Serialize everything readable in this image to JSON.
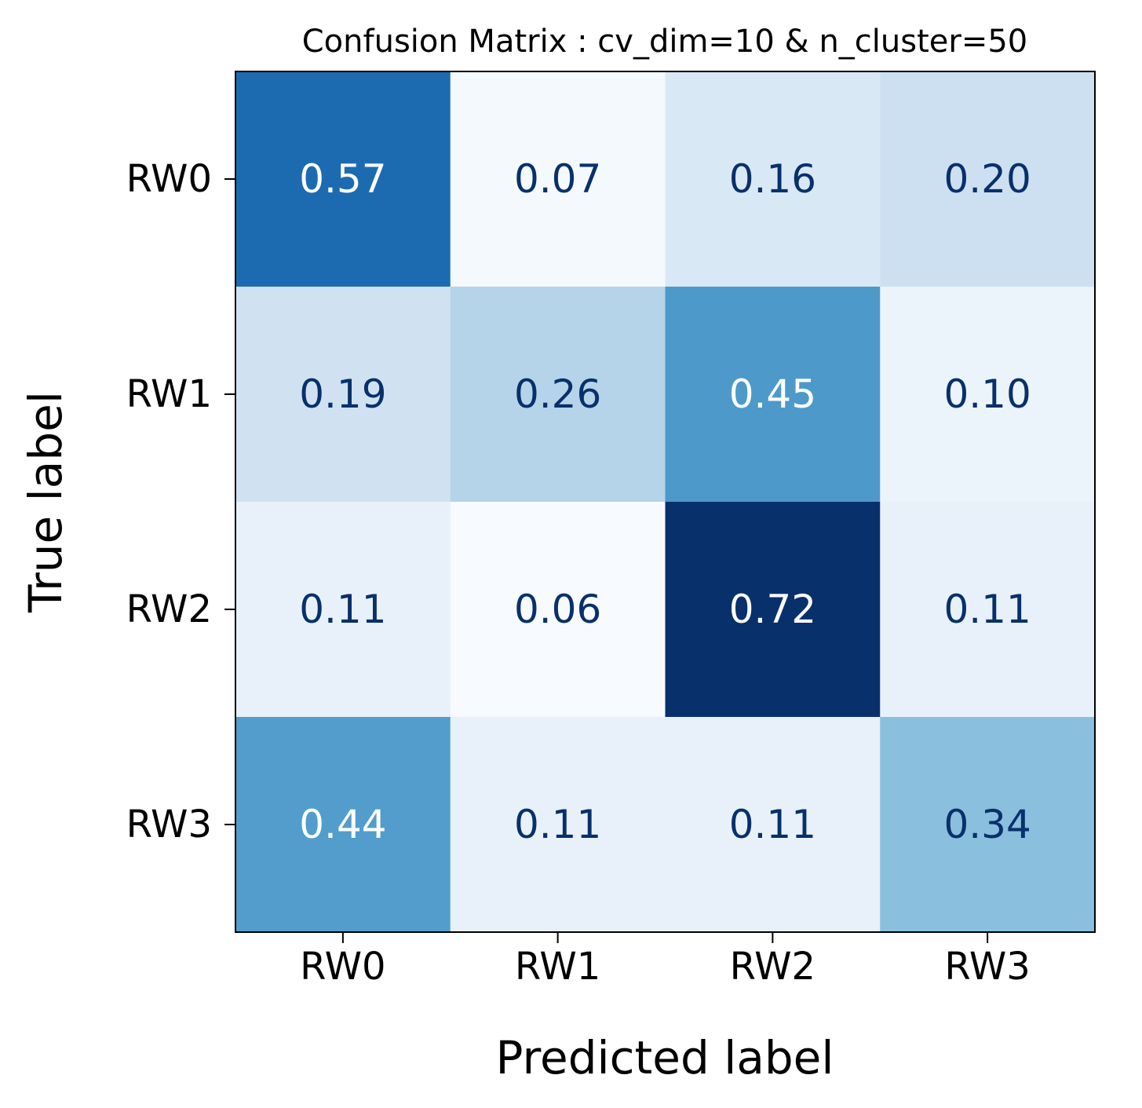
{
  "chart_data": {
    "type": "heatmap",
    "title": "Confusion Matrix : cv_dim=10 & n_cluster=50",
    "xlabel": "Predicted label",
    "ylabel": "True label",
    "x_categories": [
      "RW0",
      "RW1",
      "RW2",
      "RW3"
    ],
    "y_categories": [
      "RW0",
      "RW1",
      "RW2",
      "RW3"
    ],
    "values": [
      [
        0.57,
        0.07,
        0.16,
        0.2
      ],
      [
        0.19,
        0.26,
        0.45,
        0.1
      ],
      [
        0.11,
        0.06,
        0.72,
        0.11
      ],
      [
        0.44,
        0.11,
        0.11,
        0.34
      ]
    ],
    "value_format": "2-decimal",
    "colormap": "Blues",
    "color_range": [
      0,
      1
    ],
    "grid": false,
    "colors": {
      "cell_text_dark": "#08306b",
      "cell_text_light": "#ffffff",
      "frame": "#000000"
    }
  }
}
